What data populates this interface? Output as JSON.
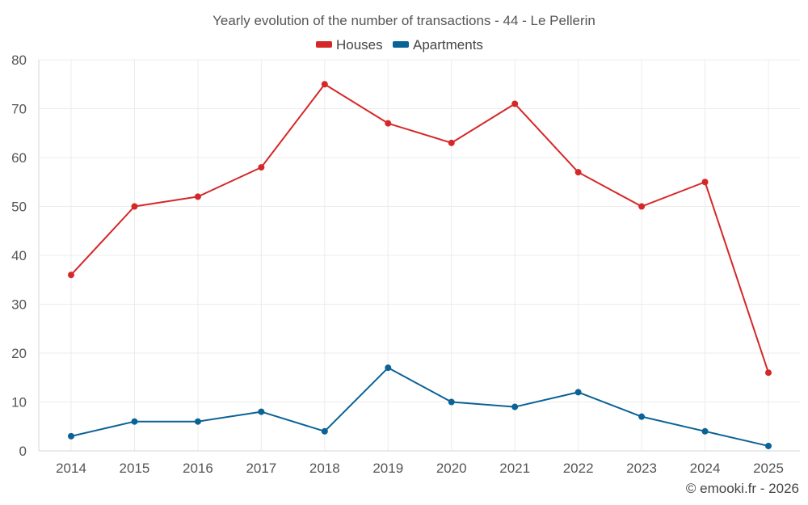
{
  "chart_data": {
    "type": "line",
    "title": "Yearly evolution of the number of transactions - 44 - Le Pellerin",
    "xlabel": "",
    "ylabel": "",
    "x": [
      "2014",
      "2015",
      "2016",
      "2017",
      "2018",
      "2019",
      "2020",
      "2021",
      "2022",
      "2023",
      "2024",
      "2025"
    ],
    "ylim": [
      0,
      80
    ],
    "yticks": [
      0,
      10,
      20,
      30,
      40,
      50,
      60,
      70,
      80
    ],
    "grid": true,
    "legend_position": "top-center",
    "series": [
      {
        "name": "Houses",
        "color": "#d62728",
        "values": [
          36,
          50,
          52,
          58,
          75,
          67,
          63,
          71,
          57,
          50,
          55,
          16
        ]
      },
      {
        "name": "Apartments",
        "color": "#0a6296",
        "values": [
          3,
          6,
          6,
          8,
          4,
          17,
          10,
          9,
          12,
          7,
          4,
          1
        ]
      }
    ]
  },
  "credit": "© emooki.fr - 2026"
}
